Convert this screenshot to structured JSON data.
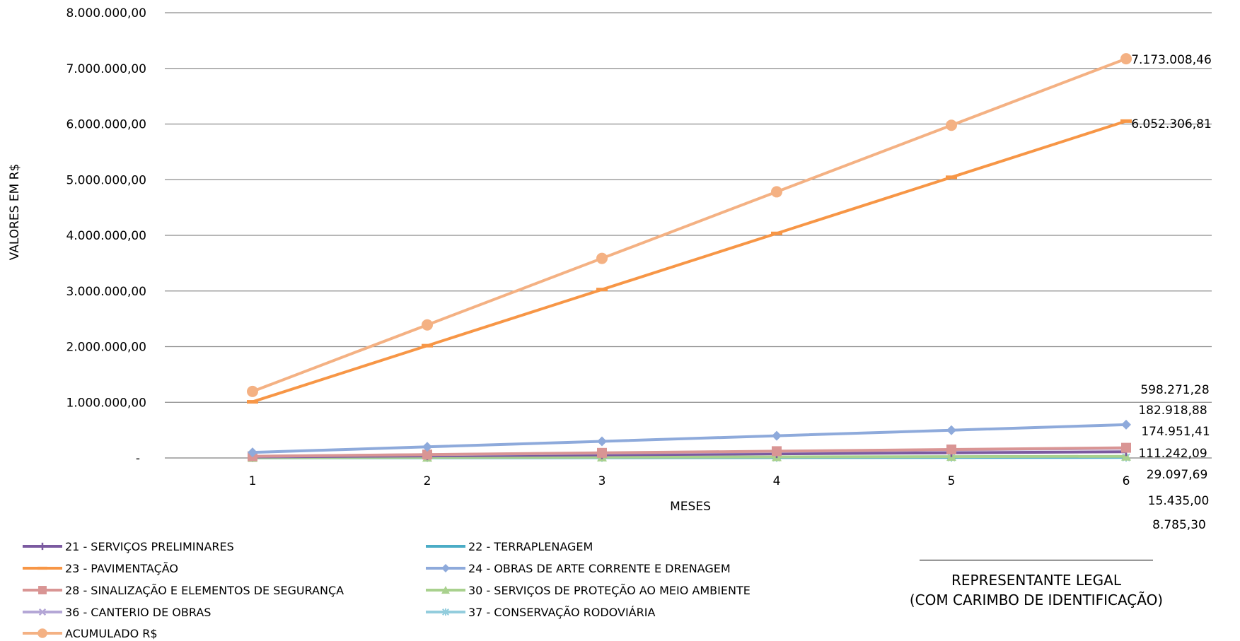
{
  "chart_data": {
    "type": "line",
    "xlabel": "MESES",
    "ylabel": "VALORES EM R$",
    "x": [
      1,
      2,
      3,
      4,
      5,
      6
    ],
    "ylim": [
      0,
      8000000
    ],
    "y_ticks": [
      0,
      1000000,
      2000000,
      3000000,
      4000000,
      5000000,
      6000000,
      7000000,
      8000000
    ],
    "y_tick_labels": [
      "-",
      "1.000.000,00",
      "2.000.000,00",
      "3.000.000,00",
      "4.000.000,00",
      "5.000.000,00",
      "6.000.000,00",
      "7.000.000,00",
      "8.000.000,00"
    ],
    "grid": "horizontal",
    "legend_position": "bottom",
    "series": [
      {
        "name": "21 - SERVIÇOS PRELIMINARES",
        "color": "#7b5aa0",
        "marker": "plus",
        "values": [
          18540,
          37081,
          55621,
          74161,
          92702,
          111242.09
        ]
      },
      {
        "name": "22 - TERRAPLENAGEM",
        "color": "#4bacc6",
        "marker": "none",
        "values": [
          2573,
          5145,
          7718,
          10290,
          12863,
          15435.0
        ]
      },
      {
        "name": "23 - PAVIMENTAÇÃO",
        "color": "#f79646",
        "marker": "dash",
        "values": [
          1008718,
          2017436,
          3026153,
          4034871,
          5043589,
          6052306.81
        ]
      },
      {
        "name": "24 - OBRAS DE ARTE CORRENTE E DRENAGEM",
        "color": "#8eaadb",
        "marker": "diamond",
        "values": [
          99712,
          199424,
          299136,
          398848,
          498560,
          598271.28
        ]
      },
      {
        "name": "28 - SINALIZAÇÃO E ELEMENTOS DE SEGURANÇA",
        "color": "#d99594",
        "marker": "square",
        "values": [
          30486,
          60973,
          91459,
          121946,
          152432,
          182918.88
        ]
      },
      {
        "name": "30 - SERVIÇOS DE PROTEÇÃO AO MEIO AMBIENTE",
        "color": "#a9d18e",
        "marker": "triangle",
        "values": [
          4850,
          9699,
          14549,
          19398,
          24248,
          29097.69
        ]
      },
      {
        "name": "36 - CANTERIO DE OBRAS",
        "color": "#b4a7d6",
        "marker": "x",
        "values": [
          29159,
          58317,
          87476,
          116634,
          145793,
          174951.41
        ]
      },
      {
        "name": "37 - CONSERVAÇÃO RODOVIÁRIA",
        "color": "#93cddd",
        "marker": "star",
        "values": [
          1464,
          2928,
          4393,
          5857,
          7321,
          8785.3
        ]
      },
      {
        "name": "ACUMULADO  R$",
        "color": "#f4b183",
        "marker": "circle",
        "values": [
          1195501,
          2391003,
          3586504,
          4782006,
          5977507,
          7173008.46
        ]
      }
    ],
    "end_labels": [
      "7.173.008,46",
      "6.052.306,81",
      "598.271,28",
      "182.918,88",
      "174.951,41",
      "111.242,09",
      "29.097,69",
      "15.435,00",
      "8.785,30"
    ]
  },
  "signature": {
    "line1": "REPRESENTANTE  LEGAL",
    "line2": "(COM CARIMBO DE IDENTIFICAÇÃO)"
  }
}
